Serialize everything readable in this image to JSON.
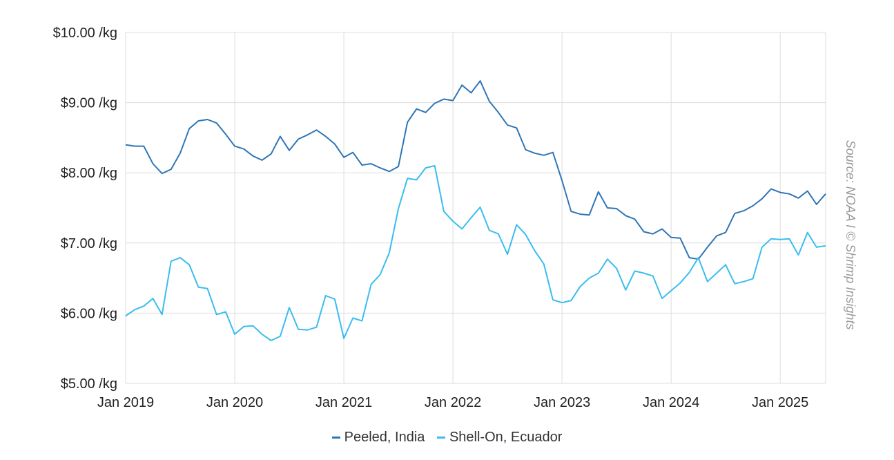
{
  "chart_data": {
    "type": "line",
    "xlabel": "",
    "ylabel": "",
    "grid": true,
    "legend_position": "bottom-center",
    "xlim": [
      "2019-01",
      "2025-06"
    ],
    "ylim": [
      5,
      10
    ],
    "yticks": [
      {
        "value": 10,
        "label": "$10.00 /kg"
      },
      {
        "value": 9,
        "label": "$9.00 /kg"
      },
      {
        "value": 8,
        "label": "$8.00 /kg"
      },
      {
        "value": 7,
        "label": "$7.00 /kg"
      },
      {
        "value": 6,
        "label": "$6.00 /kg"
      },
      {
        "value": 5,
        "label": "$5.00 /kg"
      }
    ],
    "xticks": [
      {
        "value": "2019-01",
        "label": "Jan 2019"
      },
      {
        "value": "2020-01",
        "label": "Jan 2020"
      },
      {
        "value": "2021-01",
        "label": "Jan 2021"
      },
      {
        "value": "2022-01",
        "label": "Jan 2022"
      },
      {
        "value": "2023-01",
        "label": "Jan 2023"
      },
      {
        "value": "2024-01",
        "label": "Jan 2024"
      },
      {
        "value": "2025-01",
        "label": "Jan 2025"
      }
    ],
    "x": [
      "2019-01",
      "2019-02",
      "2019-03",
      "2019-04",
      "2019-05",
      "2019-06",
      "2019-07",
      "2019-08",
      "2019-09",
      "2019-10",
      "2019-11",
      "2019-12",
      "2020-01",
      "2020-02",
      "2020-03",
      "2020-04",
      "2020-05",
      "2020-06",
      "2020-07",
      "2020-08",
      "2020-09",
      "2020-10",
      "2020-11",
      "2020-12",
      "2021-01",
      "2021-02",
      "2021-03",
      "2021-04",
      "2021-05",
      "2021-06",
      "2021-07",
      "2021-08",
      "2021-09",
      "2021-10",
      "2021-11",
      "2021-12",
      "2022-01",
      "2022-02",
      "2022-03",
      "2022-04",
      "2022-05",
      "2022-06",
      "2022-07",
      "2022-08",
      "2022-09",
      "2022-10",
      "2022-11",
      "2022-12",
      "2023-01",
      "2023-02",
      "2023-03",
      "2023-04",
      "2023-05",
      "2023-06",
      "2023-07",
      "2023-08",
      "2023-09",
      "2023-10",
      "2023-11",
      "2023-12",
      "2024-01",
      "2024-02",
      "2024-03",
      "2024-04",
      "2024-05",
      "2024-06",
      "2024-07",
      "2024-08",
      "2024-09",
      "2024-10",
      "2024-11",
      "2024-12",
      "2025-01",
      "2025-02",
      "2025-03",
      "2025-04",
      "2025-05",
      "2025-06"
    ],
    "series": [
      {
        "name": "Peeled, India",
        "color": "#2e75b6",
        "values": [
          8.4,
          8.38,
          8.38,
          8.13,
          7.99,
          8.05,
          8.28,
          8.63,
          8.74,
          8.76,
          8.71,
          8.55,
          8.38,
          8.34,
          8.24,
          8.18,
          8.27,
          8.52,
          8.32,
          8.48,
          8.54,
          8.61,
          8.52,
          8.41,
          8.22,
          8.29,
          8.11,
          8.13,
          8.07,
          8.02,
          8.09,
          8.72,
          8.91,
          8.86,
          8.99,
          9.05,
          9.03,
          9.25,
          9.14,
          9.31,
          9.02,
          8.86,
          8.68,
          8.64,
          8.33,
          8.28,
          8.25,
          8.29,
          7.89,
          7.45,
          7.41,
          7.4,
          7.73,
          7.5,
          7.49,
          7.39,
          7.34,
          7.16,
          7.13,
          7.2,
          7.08,
          7.07,
          6.79,
          6.77,
          6.94,
          7.1,
          7.15,
          7.42,
          7.46,
          7.53,
          7.63,
          7.77,
          7.72,
          7.7,
          7.64,
          7.74,
          7.55,
          7.7
        ]
      },
      {
        "name": "Shell-On, Ecuador",
        "color": "#38bdf0",
        "values": [
          5.96,
          6.05,
          6.1,
          6.21,
          5.98,
          6.74,
          6.79,
          6.69,
          6.37,
          6.35,
          5.98,
          6.02,
          5.7,
          5.81,
          5.82,
          5.7,
          5.61,
          5.67,
          6.08,
          5.77,
          5.76,
          5.8,
          6.25,
          6.2,
          5.64,
          5.93,
          5.89,
          6.41,
          6.55,
          6.86,
          7.49,
          7.92,
          7.9,
          8.07,
          8.1,
          7.45,
          7.31,
          7.2,
          7.36,
          7.51,
          7.18,
          7.13,
          6.84,
          7.26,
          7.12,
          6.89,
          6.7,
          6.19,
          6.15,
          6.18,
          6.38,
          6.5,
          6.57,
          6.77,
          6.64,
          6.33,
          6.6,
          6.57,
          6.53,
          6.21,
          6.32,
          6.43,
          6.58,
          6.79,
          6.45,
          6.57,
          6.69,
          6.42,
          6.45,
          6.49,
          6.94,
          7.06,
          7.05,
          7.06,
          6.83,
          7.15,
          6.94,
          6.96
        ]
      }
    ],
    "annotation": "Source: NOAA I © Shrimp Insights"
  }
}
